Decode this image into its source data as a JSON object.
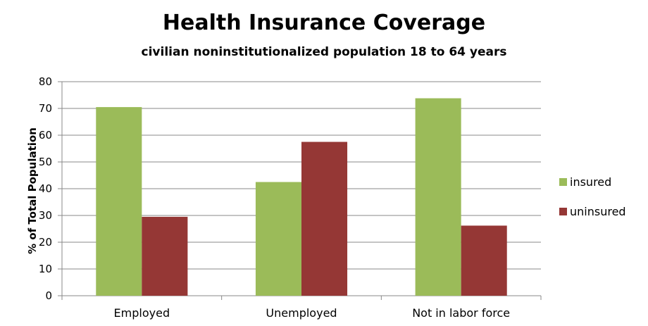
{
  "chart_data": {
    "type": "bar",
    "title": "Health Insurance Coverage",
    "subtitle": "civilian noninstitutionalized population 18 to 64 years",
    "xlabel": "",
    "ylabel": "% of Total Population",
    "ylim": [
      0,
      80
    ],
    "yticks": [
      0,
      10,
      20,
      30,
      40,
      50,
      60,
      70,
      80
    ],
    "ytick_labels": [
      "0",
      "10",
      "20",
      "30",
      "40",
      "50",
      "60",
      "70",
      "80"
    ],
    "categories": [
      "Employed",
      "Unemployed",
      "Not in labor force"
    ],
    "series": [
      {
        "name": "insured",
        "color": "#9BBB59",
        "values": [
          70.5,
          42.5,
          73.8
        ]
      },
      {
        "name": "uninsured",
        "color": "#953735",
        "values": [
          29.5,
          57.5,
          26.2
        ]
      }
    ],
    "grid": true,
    "legend_position": "right"
  }
}
